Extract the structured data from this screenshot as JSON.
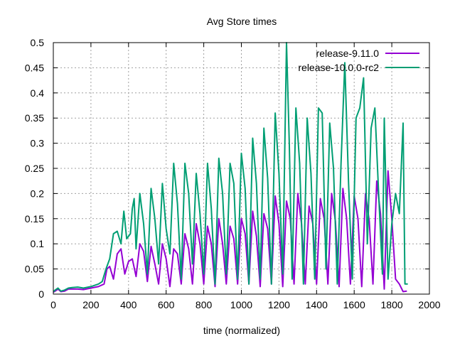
{
  "chart_data": {
    "type": "line",
    "title": "Avg Store times",
    "xlabel": "time (normalized)",
    "ylabel": "",
    "xlim": [
      0,
      2000
    ],
    "ylim": [
      0,
      0.5
    ],
    "x_ticks": [
      0,
      200,
      400,
      600,
      800,
      1000,
      1200,
      1400,
      1600,
      1800,
      2000
    ],
    "y_ticks": [
      0,
      0.05,
      0.1,
      0.15,
      0.2,
      0.25,
      0.3,
      0.35,
      0.4,
      0.45,
      0.5
    ],
    "x_tick_labels": [
      "0",
      "200",
      "400",
      "600",
      "800",
      "1000",
      "1200",
      "1400",
      "1600",
      "1800",
      "2000"
    ],
    "y_tick_labels": [
      "0",
      "0.05",
      "0.1",
      "0.15",
      "0.2",
      "0.25",
      "0.3",
      "0.35",
      "0.4",
      "0.45",
      "0.5"
    ],
    "grid": true,
    "legend_position": "top-right",
    "series": [
      {
        "name": "release-9.11.0",
        "color": "#9400d3",
        "points": [
          [
            0,
            0.004
          ],
          [
            10,
            0.006
          ],
          [
            25,
            0.01
          ],
          [
            40,
            0.005
          ],
          [
            60,
            0.006
          ],
          [
            80,
            0.01
          ],
          [
            100,
            0.01
          ],
          [
            130,
            0.01
          ],
          [
            160,
            0.009
          ],
          [
            200,
            0.012
          ],
          [
            240,
            0.015
          ],
          [
            270,
            0.02
          ],
          [
            285,
            0.05
          ],
          [
            300,
            0.055
          ],
          [
            320,
            0.03
          ],
          [
            340,
            0.08
          ],
          [
            360,
            0.09
          ],
          [
            380,
            0.04
          ],
          [
            400,
            0.065
          ],
          [
            420,
            0.07
          ],
          [
            440,
            0.035
          ],
          [
            460,
            0.1
          ],
          [
            480,
            0.085
          ],
          [
            500,
            0.025
          ],
          [
            520,
            0.095
          ],
          [
            540,
            0.06
          ],
          [
            560,
            0.02
          ],
          [
            580,
            0.1
          ],
          [
            600,
            0.07
          ],
          [
            620,
            0.015
          ],
          [
            640,
            0.09
          ],
          [
            660,
            0.08
          ],
          [
            680,
            0.02
          ],
          [
            700,
            0.12
          ],
          [
            720,
            0.09
          ],
          [
            740,
            0.02
          ],
          [
            760,
            0.14
          ],
          [
            780,
            0.1
          ],
          [
            800,
            0.02
          ],
          [
            820,
            0.135
          ],
          [
            840,
            0.1
          ],
          [
            860,
            0.015
          ],
          [
            880,
            0.15
          ],
          [
            900,
            0.1
          ],
          [
            920,
            0.02
          ],
          [
            940,
            0.135
          ],
          [
            960,
            0.11
          ],
          [
            980,
            0.02
          ],
          [
            1000,
            0.15
          ],
          [
            1020,
            0.12
          ],
          [
            1040,
            0.02
          ],
          [
            1060,
            0.165
          ],
          [
            1080,
            0.115
          ],
          [
            1100,
            0.015
          ],
          [
            1120,
            0.16
          ],
          [
            1140,
            0.13
          ],
          [
            1160,
            0.02
          ],
          [
            1180,
            0.195
          ],
          [
            1200,
            0.14
          ],
          [
            1220,
            0.015
          ],
          [
            1240,
            0.185
          ],
          [
            1260,
            0.15
          ],
          [
            1280,
            0.02
          ],
          [
            1300,
            0.2
          ],
          [
            1320,
            0.14
          ],
          [
            1340,
            0.02
          ],
          [
            1360,
            0.175
          ],
          [
            1380,
            0.14
          ],
          [
            1400,
            0.02
          ],
          [
            1420,
            0.19
          ],
          [
            1440,
            0.15
          ],
          [
            1460,
            0.02
          ],
          [
            1480,
            0.2
          ],
          [
            1500,
            0.145
          ],
          [
            1520,
            0.015
          ],
          [
            1540,
            0.21
          ],
          [
            1560,
            0.15
          ],
          [
            1580,
            0.02
          ],
          [
            1600,
            0.195
          ],
          [
            1620,
            0.15
          ],
          [
            1640,
            0.015
          ],
          [
            1660,
            0.2
          ],
          [
            1680,
            0.145
          ],
          [
            1700,
            0.02
          ],
          [
            1720,
            0.225
          ],
          [
            1740,
            0.16
          ],
          [
            1760,
            0.01
          ],
          [
            1780,
            0.245
          ],
          [
            1800,
            0.15
          ],
          [
            1820,
            0.03
          ],
          [
            1840,
            0.02
          ],
          [
            1860,
            0.005
          ],
          [
            1880,
            0.006
          ]
        ]
      },
      {
        "name": "release-10.0.0-rc2",
        "color": "#009e73",
        "points": [
          [
            0,
            0.005
          ],
          [
            10,
            0.008
          ],
          [
            25,
            0.012
          ],
          [
            40,
            0.006
          ],
          [
            60,
            0.008
          ],
          [
            80,
            0.012
          ],
          [
            100,
            0.013
          ],
          [
            130,
            0.014
          ],
          [
            160,
            0.012
          ],
          [
            200,
            0.015
          ],
          [
            240,
            0.02
          ],
          [
            260,
            0.025
          ],
          [
            280,
            0.05
          ],
          [
            300,
            0.07
          ],
          [
            320,
            0.12
          ],
          [
            340,
            0.125
          ],
          [
            360,
            0.1
          ],
          [
            375,
            0.165
          ],
          [
            390,
            0.11
          ],
          [
            410,
            0.12
          ],
          [
            420,
            0.17
          ],
          [
            430,
            0.19
          ],
          [
            440,
            0.09
          ],
          [
            460,
            0.2
          ],
          [
            480,
            0.14
          ],
          [
            500,
            0.04
          ],
          [
            520,
            0.21
          ],
          [
            540,
            0.15
          ],
          [
            560,
            0.06
          ],
          [
            580,
            0.22
          ],
          [
            600,
            0.13
          ],
          [
            620,
            0.08
          ],
          [
            640,
            0.26
          ],
          [
            660,
            0.18
          ],
          [
            680,
            0.03
          ],
          [
            700,
            0.26
          ],
          [
            720,
            0.2
          ],
          [
            740,
            0.06
          ],
          [
            760,
            0.24
          ],
          [
            780,
            0.16
          ],
          [
            800,
            0.04
          ],
          [
            820,
            0.26
          ],
          [
            840,
            0.17
          ],
          [
            860,
            0.02
          ],
          [
            880,
            0.27
          ],
          [
            900,
            0.2
          ],
          [
            920,
            0.04
          ],
          [
            940,
            0.26
          ],
          [
            960,
            0.22
          ],
          [
            980,
            0.03
          ],
          [
            1000,
            0.28
          ],
          [
            1020,
            0.21
          ],
          [
            1040,
            0.02
          ],
          [
            1060,
            0.31
          ],
          [
            1080,
            0.22
          ],
          [
            1100,
            0.03
          ],
          [
            1120,
            0.33
          ],
          [
            1140,
            0.23
          ],
          [
            1160,
            0.02
          ],
          [
            1180,
            0.36
          ],
          [
            1200,
            0.24
          ],
          [
            1220,
            0.04
          ],
          [
            1240,
            0.5
          ],
          [
            1255,
            0.3
          ],
          [
            1270,
            0.03
          ],
          [
            1290,
            0.37
          ],
          [
            1310,
            0.26
          ],
          [
            1330,
            0.02
          ],
          [
            1350,
            0.35
          ],
          [
            1370,
            0.24
          ],
          [
            1390,
            0.03
          ],
          [
            1410,
            0.37
          ],
          [
            1430,
            0.36
          ],
          [
            1450,
            0.05
          ],
          [
            1470,
            0.34
          ],
          [
            1490,
            0.25
          ],
          [
            1510,
            0.02
          ],
          [
            1530,
            0.26
          ],
          [
            1550,
            0.46
          ],
          [
            1570,
            0.22
          ],
          [
            1590,
            0.03
          ],
          [
            1610,
            0.35
          ],
          [
            1630,
            0.37
          ],
          [
            1650,
            0.43
          ],
          [
            1670,
            0.1
          ],
          [
            1690,
            0.33
          ],
          [
            1710,
            0.37
          ],
          [
            1730,
            0.2
          ],
          [
            1750,
            0.04
          ],
          [
            1760,
            0.35
          ],
          [
            1780,
            0.03
          ],
          [
            1800,
            0.14
          ],
          [
            1820,
            0.2
          ],
          [
            1840,
            0.16
          ],
          [
            1860,
            0.34
          ],
          [
            1870,
            0.02
          ],
          [
            1885,
            0.02
          ]
        ]
      }
    ]
  }
}
